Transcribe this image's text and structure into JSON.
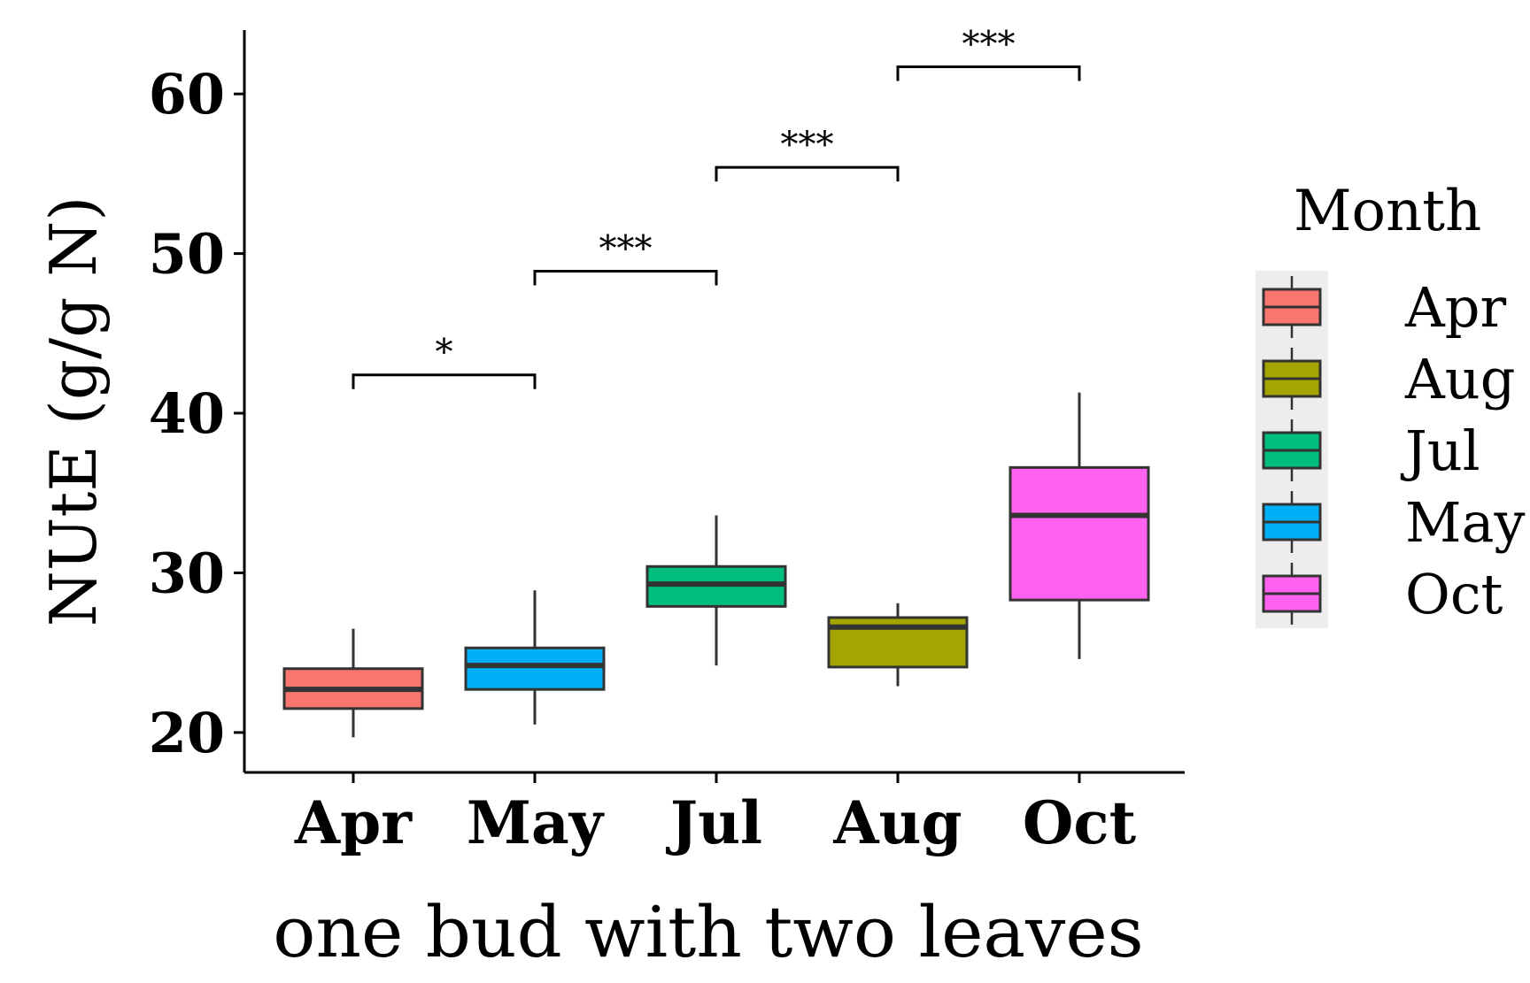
{
  "chart_data": {
    "type": "box",
    "xlabel": "one bud with two leaves",
    "ylabel": "NUtE (g/g N)",
    "ylim": [
      17.5,
      64
    ],
    "yticks": [
      20,
      30,
      40,
      50,
      60
    ],
    "categories": [
      "Apr",
      "May",
      "Jul",
      "Aug",
      "Oct"
    ],
    "boxes": [
      {
        "category": "Apr",
        "min": 19.7,
        "q1": 21.5,
        "median": 22.7,
        "q3": 24.0,
        "max": 26.5,
        "color": "#F8766D"
      },
      {
        "category": "May",
        "min": 20.5,
        "q1": 22.7,
        "median": 24.2,
        "q3": 25.3,
        "max": 28.9,
        "color": "#00B0F6"
      },
      {
        "category": "Jul",
        "min": 24.2,
        "q1": 27.9,
        "median": 29.3,
        "q3": 30.4,
        "max": 33.6,
        "color": "#00BF7D"
      },
      {
        "category": "Aug",
        "min": 22.9,
        "q1": 24.1,
        "median": 26.6,
        "q3": 27.2,
        "max": 28.1,
        "color": "#A3A500"
      },
      {
        "category": "Oct",
        "min": 24.6,
        "q1": 28.3,
        "median": 33.6,
        "q3": 36.6,
        "max": 41.3,
        "color": "#FF62EE"
      }
    ],
    "significance": [
      {
        "from": "Apr",
        "to": "May",
        "y": 42.4,
        "label": "*"
      },
      {
        "from": "May",
        "to": "Jul",
        "y": 48.9,
        "label": "***"
      },
      {
        "from": "Jul",
        "to": "Aug",
        "y": 55.4,
        "label": "***"
      },
      {
        "from": "Aug",
        "to": "Oct",
        "y": 61.7,
        "label": "***"
      }
    ],
    "legend": {
      "title": "Month",
      "position": "right",
      "entries": [
        {
          "label": "Apr",
          "color": "#F8766D"
        },
        {
          "label": "Aug",
          "color": "#A3A500"
        },
        {
          "label": "Jul",
          "color": "#00BF7D"
        },
        {
          "label": "May",
          "color": "#00B0F6"
        },
        {
          "label": "Oct",
          "color": "#FF62EE"
        }
      ]
    },
    "grid": false
  }
}
